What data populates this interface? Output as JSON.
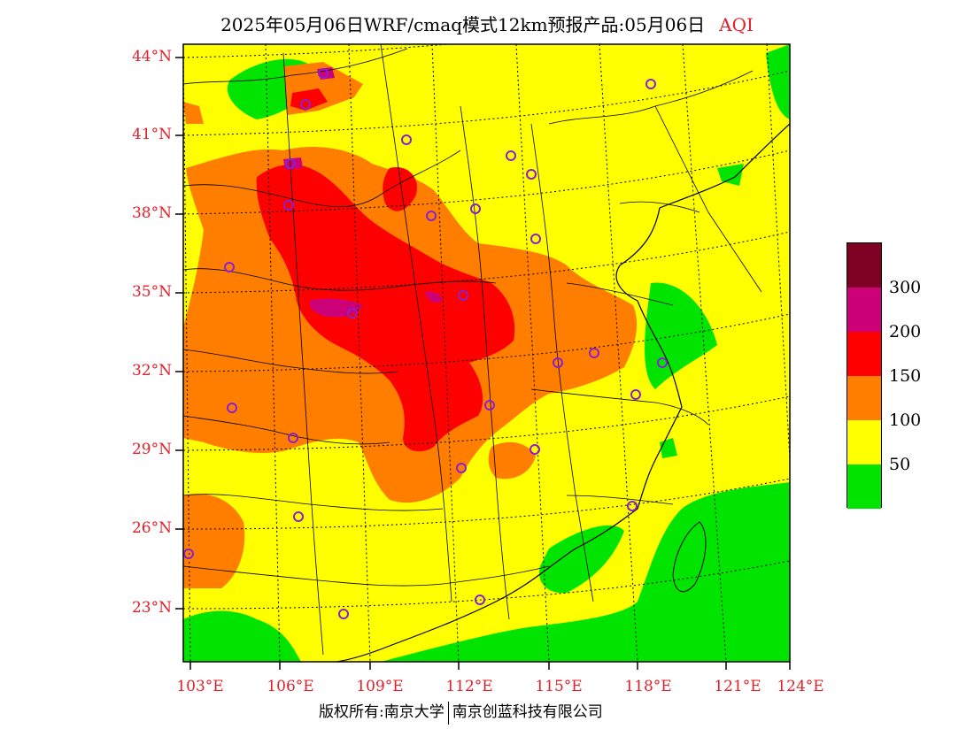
{
  "title": {
    "main": "2025年05月06日WRF/cmaq模式12km预报产品:05月06日",
    "variable": "AQI"
  },
  "colors": {
    "label_red": "#e0202a",
    "aqi_0_50": "#00e400",
    "aqi_50_100": "#ffff00",
    "aqi_100_150": "#ff7e00",
    "aqi_150_200": "#ff0000",
    "aqi_200_300": "#cc0077",
    "aqi_300_plus": "#7e0023",
    "city_marker": "#8b1fd1"
  },
  "map": {
    "lat_labels": [
      "44°N",
      "41°N",
      "38°N",
      "35°N",
      "32°N",
      "29°N",
      "26°N",
      "23°N"
    ],
    "lon_labels": [
      "103°E",
      "106°E",
      "109°E",
      "112°E",
      "115°E",
      "118°E",
      "121°E",
      "124°E"
    ]
  },
  "legend": {
    "labels": [
      "300",
      "200",
      "150",
      "100",
      "50"
    ]
  },
  "footer": {
    "copyright": "版权所有:南京大学",
    "company": "南京创蓝科技有限公司"
  }
}
